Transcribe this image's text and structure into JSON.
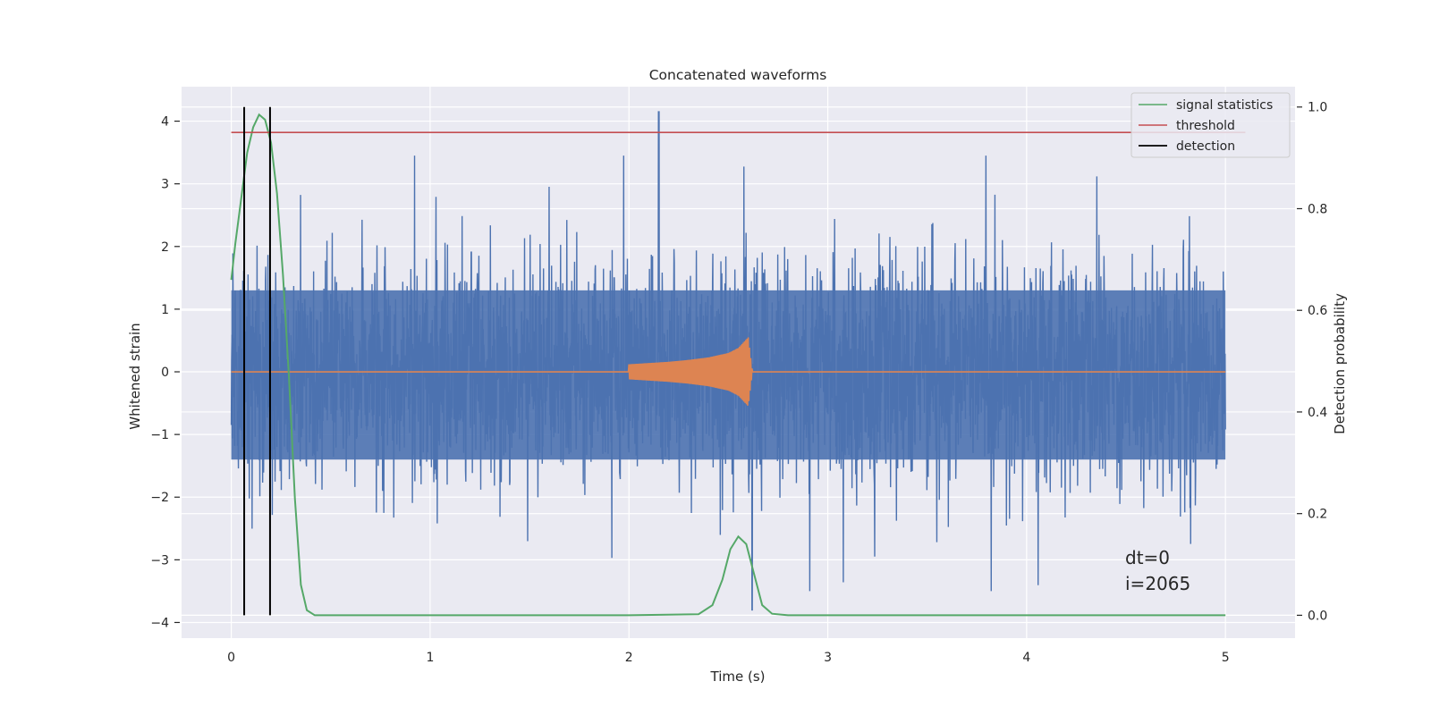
{
  "chart_data": {
    "type": "line",
    "title": "Concatenated waveforms",
    "xlabel": "Time (s)",
    "ylabel_left": "Whitened strain",
    "ylabel_right": "Detection probability",
    "xlim": [
      -0.25,
      5.35
    ],
    "ylim_left": [
      -4.25,
      4.55
    ],
    "ylim_right": [
      -0.045,
      1.04
    ],
    "x_ticks": [
      0,
      1,
      2,
      3,
      4,
      5
    ],
    "x_tick_labels": [
      "0",
      "1",
      "2",
      "3",
      "4",
      "5"
    ],
    "y_left_ticks": [
      -4,
      -3,
      -2,
      -1,
      0,
      1,
      2,
      3,
      4
    ],
    "y_left_tick_labels": [
      "−4",
      "−3",
      "−2",
      "−1",
      "0",
      "1",
      "2",
      "3",
      "4"
    ],
    "y_right_ticks": [
      0.0,
      0.2,
      0.4,
      0.6,
      0.8,
      1.0
    ],
    "y_right_tick_labels": [
      "0.0",
      "0.2",
      "0.4",
      "0.6",
      "0.8",
      "1.0"
    ],
    "grid": true,
    "legend_position": "top-right",
    "series": [
      {
        "name": "",
        "axis": "left",
        "kind": "whitened-noise",
        "color": "#4c72b0",
        "x_range": [
          0,
          5
        ],
        "envelope": [
          1.3,
          -1.4
        ],
        "peak_y": 4.15,
        "peak_x": 2.15,
        "min_y": -3.8,
        "min_x": 2.62
      },
      {
        "name": "",
        "axis": "left",
        "kind": "chirp-waveform",
        "color": "#dd8452",
        "x": [
          0,
          2.0,
          2.1,
          2.2,
          2.3,
          2.4,
          2.5,
          2.55,
          2.6,
          2.62,
          5.0
        ],
        "amplitude": [
          0,
          0.12,
          0.14,
          0.16,
          0.19,
          0.23,
          0.3,
          0.38,
          0.55,
          0.02,
          0
        ]
      },
      {
        "name": "signal statistics",
        "axis": "right",
        "color": "#55a868",
        "x": [
          0.0,
          0.02,
          0.05,
          0.08,
          0.11,
          0.14,
          0.17,
          0.2,
          0.23,
          0.26,
          0.29,
          0.32,
          0.35,
          0.38,
          0.42,
          0.5,
          1.0,
          2.0,
          2.35,
          2.42,
          2.47,
          2.51,
          2.55,
          2.59,
          2.63,
          2.67,
          2.72,
          2.8,
          3.0,
          4.0,
          5.0
        ],
        "y": [
          0.66,
          0.73,
          0.82,
          0.91,
          0.96,
          0.985,
          0.975,
          0.93,
          0.83,
          0.67,
          0.47,
          0.23,
          0.06,
          0.01,
          0.0,
          0.0,
          0.0,
          0.0,
          0.002,
          0.02,
          0.07,
          0.13,
          0.155,
          0.14,
          0.08,
          0.02,
          0.003,
          0.0,
          0.0,
          0.0,
          0.0
        ]
      },
      {
        "name": "threshold",
        "axis": "right",
        "color": "#c44e52",
        "x": [
          0,
          5.1
        ],
        "y": [
          0.95,
          0.95
        ]
      },
      {
        "name": "detection",
        "axis": "right",
        "color": "#000000",
        "kind": "vlines",
        "x": [
          0.065,
          0.195
        ],
        "y_range": [
          0.0,
          1.0
        ]
      }
    ],
    "annotations": [
      "dt=0",
      "i=2065"
    ]
  }
}
